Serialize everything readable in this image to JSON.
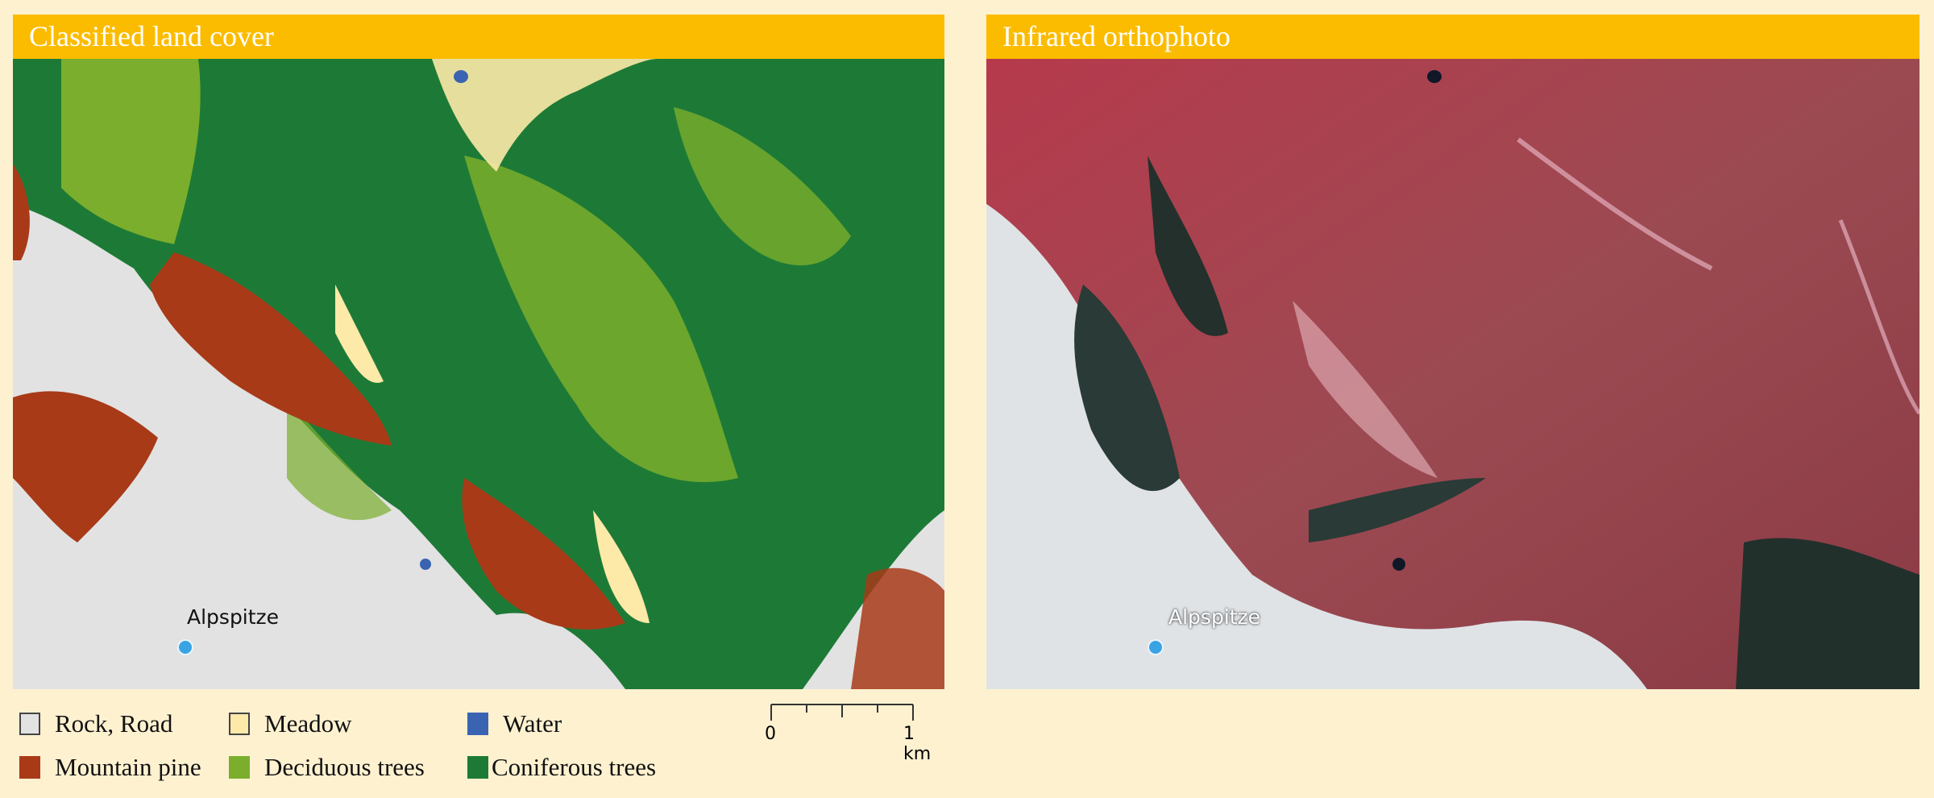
{
  "panels": [
    {
      "title": "Classified land cover",
      "marker_label": "Alpspitze"
    },
    {
      "title": "Infrared orthophoto",
      "marker_label": "Alpspitze"
    }
  ],
  "legend": [
    {
      "label": "Rock, Road",
      "color": "#e2e2e2"
    },
    {
      "label": "Meadow",
      "color": "#fde9a8"
    },
    {
      "label": "Water",
      "color": "#3a64b2"
    },
    {
      "label": "Mountain pine",
      "color": "#a83a18"
    },
    {
      "label": "Deciduous trees",
      "color": "#7aae2c"
    },
    {
      "label": "Coniferous trees",
      "color": "#1d7a36"
    }
  ],
  "scale_bar": {
    "start": "0",
    "end": "1 km"
  },
  "colors": {
    "background": "#fdf1d0",
    "header": "#fbbc00",
    "marker": "#3aa3e3"
  }
}
